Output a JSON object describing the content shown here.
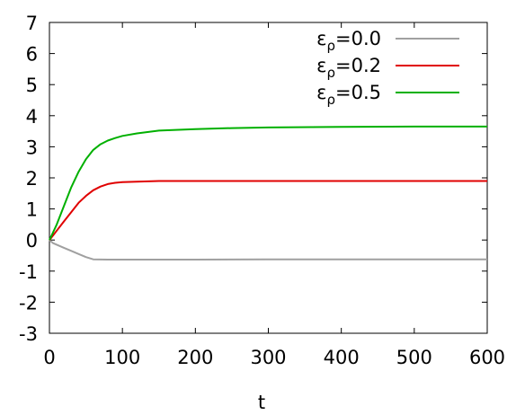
{
  "chart_data": {
    "type": "line",
    "title": "",
    "xlabel": "t",
    "ylabel": "",
    "xlim": [
      0,
      600
    ],
    "ylim": [
      -3,
      7
    ],
    "xticks": [
      0,
      100,
      200,
      300,
      400,
      500,
      600
    ],
    "yticks": [
      -3,
      -2,
      -1,
      0,
      1,
      2,
      3,
      4,
      5,
      6,
      7
    ],
    "grid": false,
    "legend_position": "top-right",
    "series": [
      {
        "name": "ε_ρ=0.0",
        "legend_base": "ε",
        "legend_sub": "ρ",
        "legend_rest": "=0.0",
        "color": "#a0a0a0",
        "x": [
          0,
          5,
          10,
          20,
          30,
          40,
          50,
          60,
          80,
          100,
          150,
          200,
          300,
          400,
          500,
          600
        ],
        "y": [
          0,
          -0.1,
          -0.15,
          -0.25,
          -0.35,
          -0.45,
          -0.55,
          -0.62,
          -0.63,
          -0.63,
          -0.63,
          -0.63,
          -0.62,
          -0.62,
          -0.62,
          -0.62
        ]
      },
      {
        "name": "ε_ρ=0.2",
        "legend_base": "ε",
        "legend_sub": "ρ",
        "legend_rest": "=0.2",
        "color": "#e00000",
        "x": [
          0,
          5,
          10,
          20,
          30,
          40,
          50,
          60,
          70,
          80,
          90,
          100,
          120,
          150,
          200,
          300,
          400,
          500,
          600
        ],
        "y": [
          0,
          0.15,
          0.3,
          0.6,
          0.9,
          1.2,
          1.42,
          1.6,
          1.72,
          1.8,
          1.84,
          1.86,
          1.88,
          1.9,
          1.9,
          1.9,
          1.9,
          1.9,
          1.9
        ]
      },
      {
        "name": "ε_ρ=0.5",
        "legend_base": "ε",
        "legend_sub": "ρ",
        "legend_rest": "=0.5",
        "color": "#00b000",
        "x": [
          0,
          5,
          10,
          20,
          30,
          40,
          50,
          60,
          70,
          80,
          90,
          100,
          120,
          150,
          200,
          250,
          300,
          400,
          500,
          600
        ],
        "y": [
          0,
          0.25,
          0.5,
          1.1,
          1.7,
          2.2,
          2.6,
          2.9,
          3.08,
          3.2,
          3.28,
          3.35,
          3.43,
          3.52,
          3.57,
          3.6,
          3.62,
          3.64,
          3.65,
          3.65
        ]
      }
    ]
  }
}
